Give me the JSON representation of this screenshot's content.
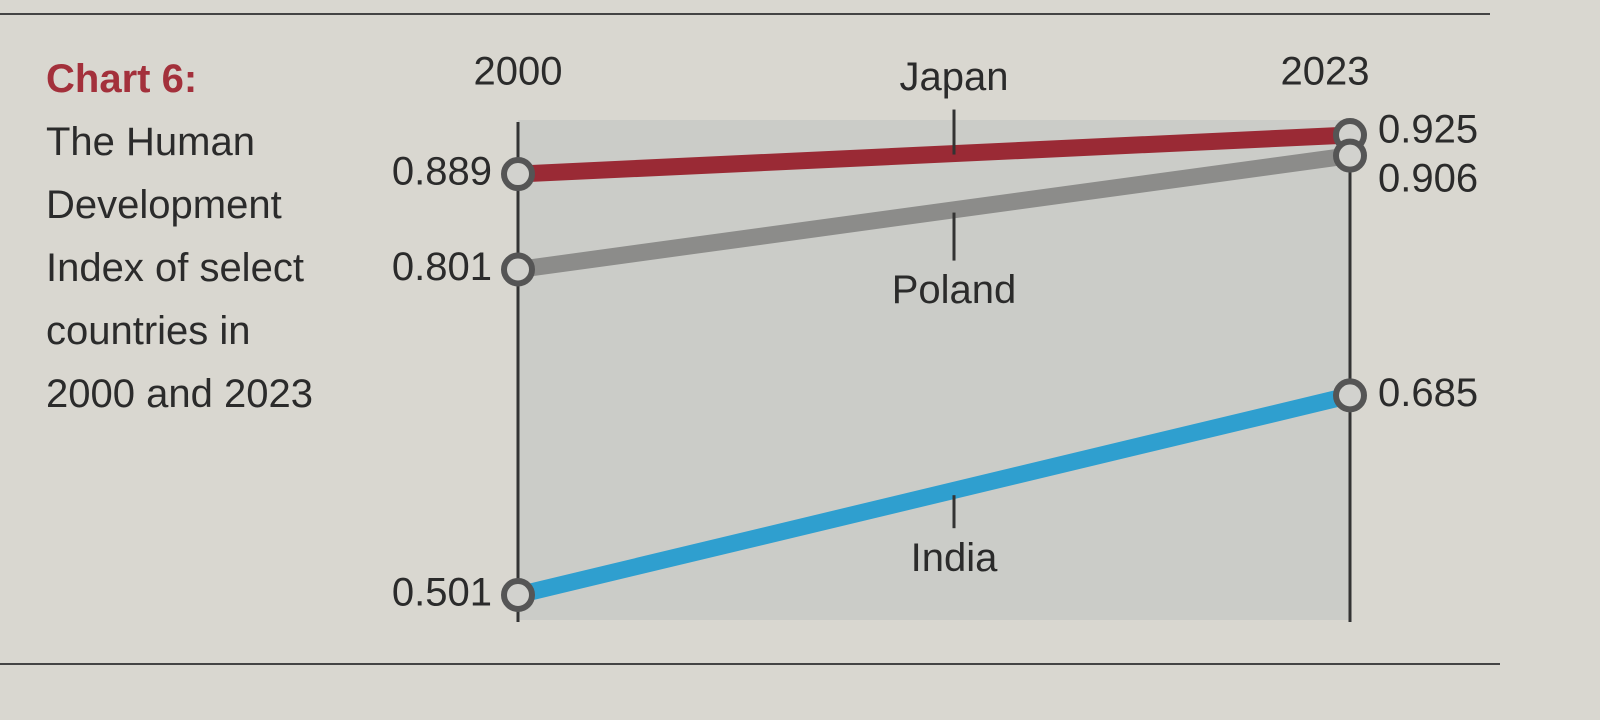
{
  "chart_data": {
    "type": "slope",
    "title": "Chart 6:",
    "subtitle": "The Human Development Index of select countries in 2000 and 2023",
    "categories": [
      "2000",
      "2023"
    ],
    "series": [
      {
        "name": "Japan",
        "color": "#9a2a35",
        "values": [
          0.889,
          0.925
        ]
      },
      {
        "name": "Poland",
        "color": "#8c8c8a",
        "values": [
          0.801,
          0.906
        ]
      },
      {
        "name": "India",
        "color": "#2f9fcf",
        "values": [
          0.501,
          0.685
        ]
      }
    ]
  }
}
